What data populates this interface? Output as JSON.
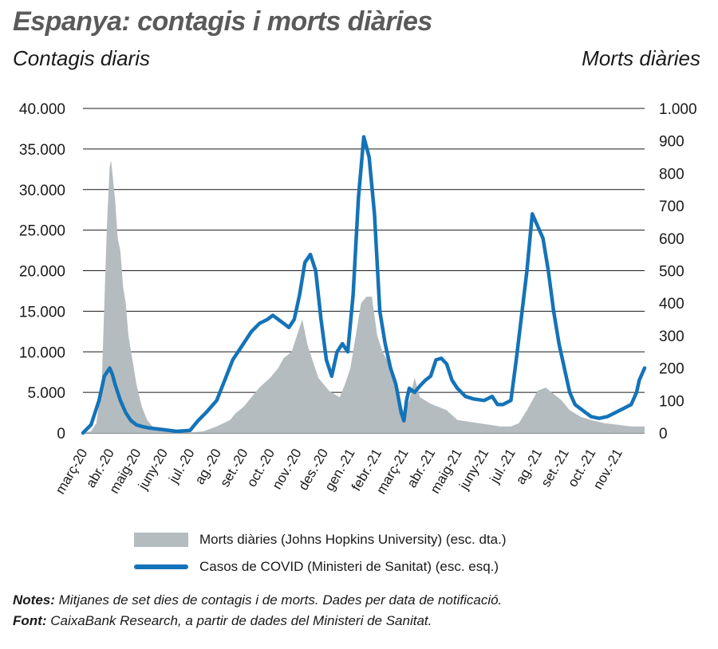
{
  "title": "Espanya: contagis i morts diàries",
  "left_axis_title": "Contagis diaris",
  "right_axis_title": "Morts diàries",
  "legend": {
    "deaths": "Morts diàries (Johns Hopkins University) (esc. dta.)",
    "cases": "Casos de COVID (Ministeri de Sanitat) (esc. esq.)"
  },
  "notes": {
    "notes_label": "Notes:",
    "notes_text": " Mitjanes de set dies de contagis i de morts. Dades per data de notificació.",
    "source_label": "Font:",
    "source_text": " CaixaBank Research, a partir de dades del Ministeri de Sanitat."
  },
  "colors": {
    "cases": "#1473b8",
    "deaths": "#b4bcbf",
    "grid": "#1a1a1a"
  },
  "chart_data": {
    "type": "line",
    "title": "Espanya: contagis i morts diàries",
    "x_categories": [
      "març-20",
      "abr.-20",
      "maig-20",
      "juny-20",
      "jul.-20",
      "ag.-20",
      "set.-20",
      "oct.-20",
      "nov.-20",
      "des.-20",
      "gen.-21",
      "febr.-21",
      "març-21",
      "abr.-21",
      "maig-21",
      "juny-21",
      "jul.-21",
      "ag.-21",
      "set.-21",
      "oct.-21",
      "nov.-21"
    ],
    "x_range_months": [
      0,
      21
    ],
    "y_left": {
      "label": "Contagis diaris",
      "range": [
        0,
        40000
      ],
      "ticks": [
        0,
        5000,
        10000,
        15000,
        20000,
        25000,
        30000,
        35000,
        40000
      ],
      "tick_labels": [
        "0",
        "5.000",
        "10.000",
        "15.000",
        "20.000",
        "25.000",
        "30.000",
        "35.000",
        "40.000"
      ]
    },
    "y_right": {
      "label": "Morts diàries",
      "range": [
        0,
        1000
      ],
      "ticks": [
        0,
        100,
        200,
        300,
        400,
        500,
        600,
        700,
        800,
        900,
        1000
      ],
      "tick_labels": [
        "0",
        "100",
        "200",
        "300",
        "400",
        "500",
        "600",
        "700",
        "800",
        "900",
        "1.000"
      ]
    },
    "series": [
      {
        "name": "Morts diàries (Johns Hopkins University) (esc. dta.)",
        "axis": "right",
        "style": "area",
        "x": [
          0,
          0.3,
          0.5,
          0.7,
          0.8,
          0.9,
          1.0,
          1.05,
          1.1,
          1.2,
          1.3,
          1.4,
          1.5,
          1.6,
          1.7,
          1.8,
          1.9,
          2.0,
          2.2,
          2.4,
          2.6,
          2.8,
          3.0,
          3.5,
          4.0,
          4.5,
          5.0,
          5.5,
          5.7,
          6.0,
          6.3,
          6.6,
          7.0,
          7.3,
          7.5,
          7.8,
          8.0,
          8.2,
          8.4,
          8.6,
          8.8,
          9.0,
          9.2,
          9.4,
          9.6,
          9.8,
          10.0,
          10.2,
          10.4,
          10.6,
          10.8,
          11.0,
          11.2,
          11.4,
          11.6,
          11.8,
          12.0,
          12.2,
          12.4,
          12.6,
          12.8,
          13.0,
          13.3,
          13.6,
          14.0,
          14.4,
          14.8,
          15.2,
          15.6,
          16.0,
          16.3,
          16.6,
          17.0,
          17.3,
          17.6,
          17.9,
          18.2,
          18.6,
          19.0,
          19.5,
          20.0,
          20.5,
          21.0
        ],
        "values": [
          0,
          5,
          30,
          150,
          400,
          650,
          820,
          840,
          800,
          720,
          600,
          560,
          450,
          400,
          300,
          250,
          200,
          150,
          80,
          40,
          20,
          10,
          5,
          3,
          2,
          5,
          20,
          40,
          60,
          80,
          110,
          140,
          170,
          200,
          230,
          250,
          300,
          350,
          270,
          220,
          170,
          150,
          130,
          120,
          110,
          150,
          200,
          300,
          400,
          420,
          420,
          300,
          250,
          220,
          180,
          120,
          60,
          100,
          170,
          110,
          100,
          90,
          80,
          70,
          40,
          35,
          30,
          25,
          20,
          20,
          30,
          70,
          130,
          140,
          120,
          100,
          70,
          50,
          40,
          30,
          25,
          20,
          20
        ]
      },
      {
        "name": "Casos de COVID (Ministeri de Sanitat) (esc. esq.)",
        "axis": "left",
        "style": "line",
        "x": [
          0,
          0.3,
          0.6,
          0.8,
          1.0,
          1.1,
          1.2,
          1.4,
          1.6,
          1.8,
          2.0,
          2.2,
          2.5,
          3.0,
          3.5,
          4.0,
          4.3,
          4.6,
          5.0,
          5.3,
          5.6,
          6.0,
          6.3,
          6.6,
          6.9,
          7.1,
          7.3,
          7.5,
          7.7,
          7.9,
          8.1,
          8.3,
          8.5,
          8.7,
          8.9,
          9.1,
          9.3,
          9.5,
          9.7,
          9.9,
          10.1,
          10.3,
          10.5,
          10.7,
          10.9,
          11.1,
          11.3,
          11.5,
          11.7,
          11.9,
          12.0,
          12.1,
          12.2,
          12.4,
          12.6,
          12.8,
          13.0,
          13.2,
          13.4,
          13.6,
          13.8,
          14.0,
          14.3,
          14.6,
          15.0,
          15.3,
          15.5,
          15.7,
          16.0,
          16.2,
          16.4,
          16.6,
          16.8,
          17.0,
          17.2,
          17.4,
          17.6,
          17.8,
          18.0,
          18.2,
          18.4,
          18.6,
          18.8,
          19.0,
          19.3,
          19.6,
          19.9,
          20.2,
          20.5,
          20.7,
          20.8,
          21.0
        ],
        "values": [
          0,
          1000,
          4000,
          7000,
          8000,
          7200,
          6000,
          4000,
          2500,
          1500,
          1000,
          800,
          600,
          400,
          200,
          300,
          1500,
          2500,
          4000,
          6500,
          9000,
          11000,
          12500,
          13500,
          14000,
          14500,
          14000,
          13500,
          13000,
          14000,
          17000,
          21000,
          22000,
          20000,
          14000,
          9000,
          7000,
          10000,
          11000,
          10000,
          17000,
          29000,
          36500,
          34000,
          27000,
          15000,
          11000,
          8000,
          6000,
          2500,
          1500,
          4000,
          5500,
          5000,
          5800,
          6500,
          7000,
          9000,
          9200,
          8500,
          6500,
          5500,
          4500,
          4200,
          4000,
          4500,
          3500,
          3500,
          4000,
          9000,
          14500,
          20000,
          27000,
          25500,
          24000,
          20000,
          15000,
          11000,
          8000,
          5000,
          3500,
          3000,
          2500,
          2000,
          1800,
          2000,
          2500,
          3000,
          3500,
          5000,
          6500,
          8000
        ]
      }
    ]
  }
}
